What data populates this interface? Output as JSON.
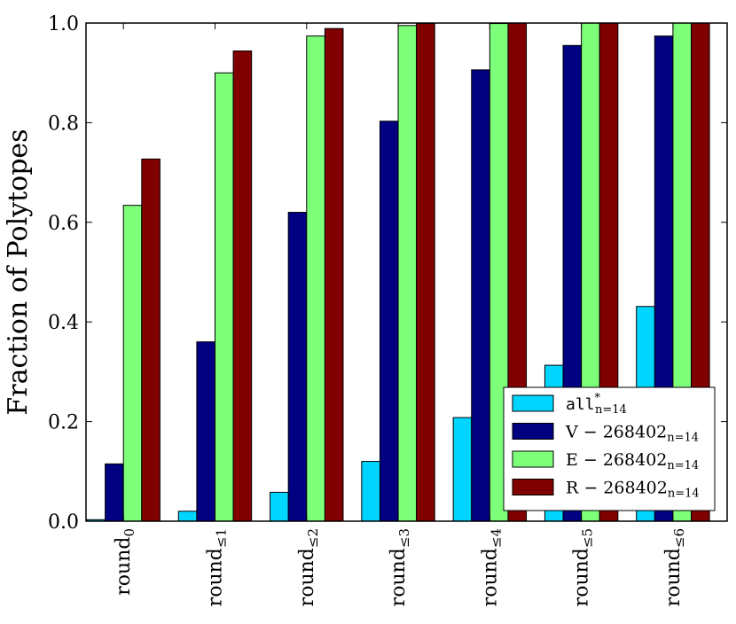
{
  "chart_data": {
    "type": "bar",
    "title": "",
    "xlabel": "",
    "ylabel": "Fraction of Polytopes",
    "ylim": [
      0,
      1.0
    ],
    "yticks": [
      "0.0",
      "0.2",
      "0.4",
      "0.6",
      "0.8",
      "1.0"
    ],
    "ytick_values": [
      0.0,
      0.2,
      0.4,
      0.6,
      0.8,
      1.0
    ],
    "categories": [
      {
        "base": "round",
        "sub": "0"
      },
      {
        "base": "round",
        "sub": "≤1"
      },
      {
        "base": "round",
        "sub": "≤2"
      },
      {
        "base": "round",
        "sub": "≤3"
      },
      {
        "base": "round",
        "sub": "≤4"
      },
      {
        "base": "round",
        "sub": "≤5"
      },
      {
        "base": "round",
        "sub": "≤6"
      }
    ],
    "series": [
      {
        "name": "all*_{n=14}",
        "label_main": "all",
        "label_sup": "*",
        "label_sub": "n=14",
        "mono": true,
        "color": "#00d5ff",
        "values": [
          0.003,
          0.02,
          0.058,
          0.12,
          0.208,
          0.313,
          0.431
        ]
      },
      {
        "name": "V − 268402_{n=14}",
        "label_main": "V − 268402",
        "label_sup": "",
        "label_sub": "n=14",
        "mono": false,
        "color": "#000080",
        "values": [
          0.115,
          0.36,
          0.62,
          0.803,
          0.906,
          0.955,
          0.974
        ]
      },
      {
        "name": "E − 268402_{n=14}",
        "label_main": "E − 268402",
        "label_sup": "",
        "label_sub": "n=14",
        "mono": false,
        "color": "#7dff7a",
        "values": [
          0.634,
          0.9,
          0.974,
          0.995,
          0.999,
          1.0,
          1.0
        ]
      },
      {
        "name": "R − 268402_{n=14}",
        "label_main": "R − 268402",
        "label_sup": "",
        "label_sub": "n=14",
        "mono": false,
        "color": "#800000",
        "values": [
          0.727,
          0.944,
          0.989,
          0.999,
          1.0,
          1.0,
          1.0
        ]
      }
    ],
    "legend_position": "lower-right"
  }
}
